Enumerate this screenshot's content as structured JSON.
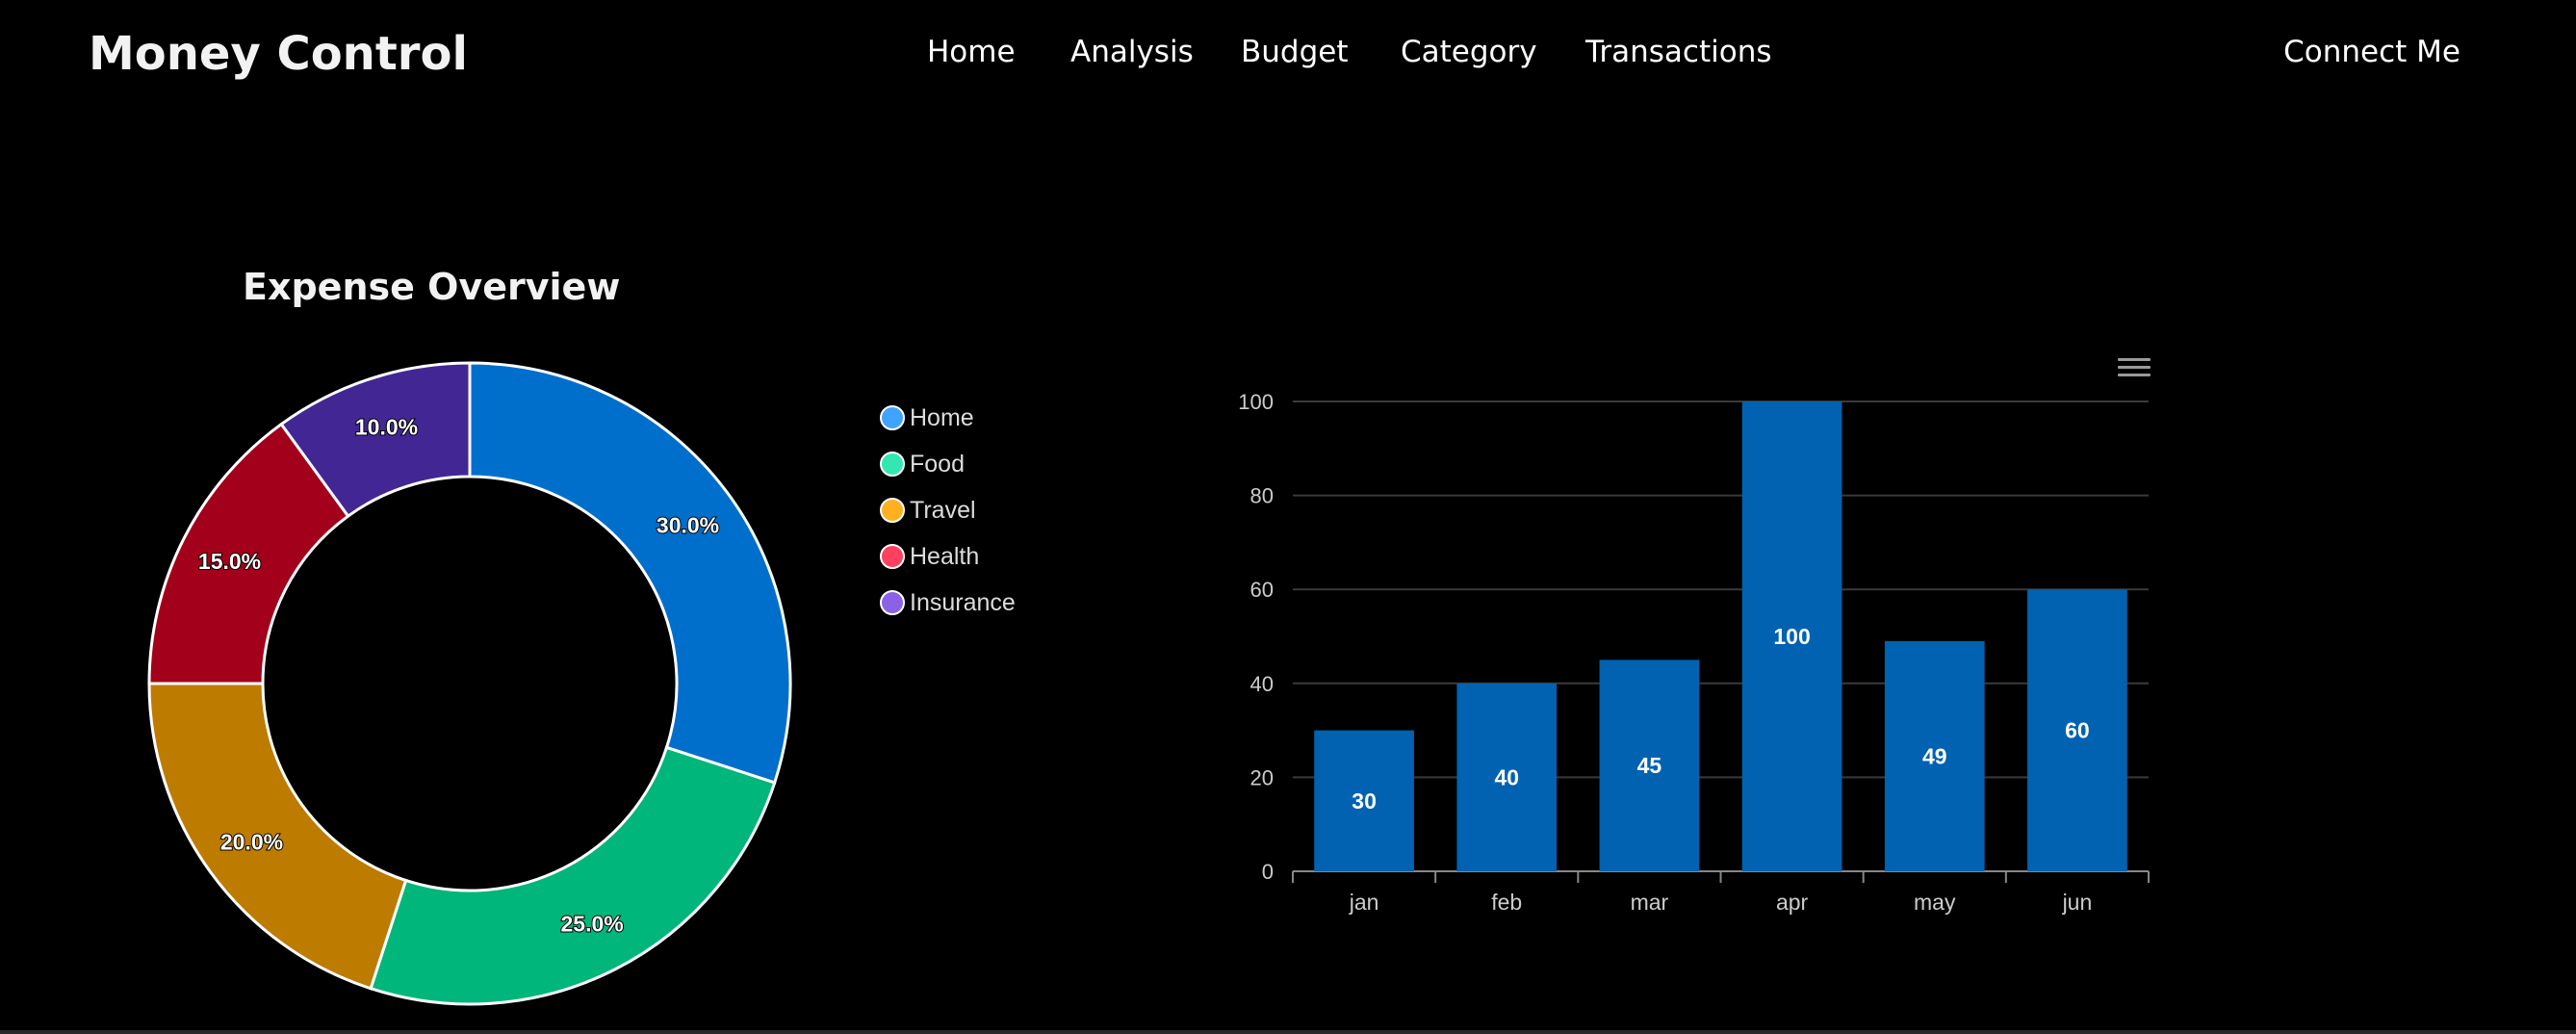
{
  "header": {
    "brand": "Money Control",
    "nav": [
      {
        "label": "Home",
        "id": "home"
      },
      {
        "label": "Analysis",
        "id": "analysis"
      },
      {
        "label": "Budget",
        "id": "budget"
      },
      {
        "label": "Category",
        "id": "category"
      },
      {
        "label": "Transactions",
        "id": "transactions"
      }
    ],
    "connect_label": "Connect Me"
  },
  "chart_data": [
    {
      "type": "pie",
      "variant": "donut",
      "title": "Expense Overview",
      "legend_position": "right",
      "slices": [
        {
          "name": "Home",
          "value": 30.0,
          "label": "30.0%",
          "color": "#006fcc",
          "legend_color": "#3fa3ff"
        },
        {
          "name": "Food",
          "value": 25.0,
          "label": "25.0%",
          "color": "#00b67a",
          "legend_color": "#33e8b0"
        },
        {
          "name": "Travel",
          "value": 20.0,
          "label": "20.0%",
          "color": "#bd7b00",
          "legend_color": "#ffb020"
        },
        {
          "name": "Health",
          "value": 15.0,
          "label": "15.0%",
          "color": "#a3001c",
          "legend_color": "#ff4060"
        },
        {
          "name": "Insurance",
          "value": 10.0,
          "label": "10.0%",
          "color": "#422794",
          "legend_color": "#8a62e8"
        }
      ]
    },
    {
      "type": "bar",
      "title": "",
      "xlabel": "",
      "ylabel": "",
      "categories": [
        "jan",
        "feb",
        "mar",
        "apr",
        "may",
        "jun"
      ],
      "values": [
        30,
        40,
        45,
        100,
        49,
        60
      ],
      "ylim": [
        0,
        100
      ],
      "yticks": [
        0,
        20,
        40,
        60,
        80,
        100
      ],
      "grid": true,
      "bar_color": "#0062b0"
    }
  ]
}
